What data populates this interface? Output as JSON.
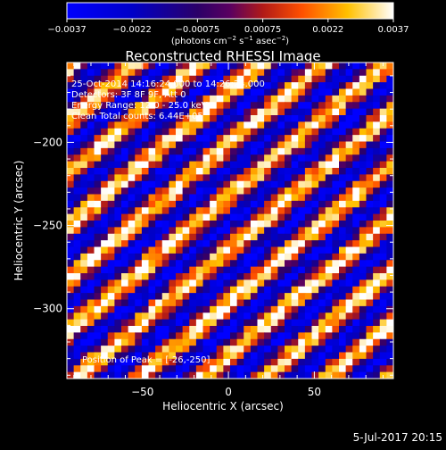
{
  "chart_data": {
    "type": "heatmap",
    "title": "Reconstructed RHESSI Image",
    "xlabel": "Heliocentric X (arcsec)",
    "ylabel": "Heliocentric Y (arcsec)",
    "xlim": [
      -94,
      96
    ],
    "ylim": [
      -342,
      -152
    ],
    "x_ticks": [
      -50,
      0,
      50
    ],
    "y_ticks": [
      -200,
      -250,
      -300
    ],
    "x_tick_labels": [
      "−50",
      "0",
      "50"
    ],
    "y_tick_labels": [
      "−200",
      "−250",
      "−300"
    ],
    "colorbar": {
      "min": -0.0037,
      "max": 0.0037,
      "tick_labels": [
        "−0.0037",
        "−0.0022",
        "−0.00075",
        "0.00075",
        "0.0022",
        "0.0037"
      ],
      "unit_label_main": "(photons cm",
      "unit_label_exp1": "−2",
      "unit_label_mid": " s",
      "unit_label_exp2": "−1",
      "unit_label_end": " asec",
      "unit_label_exp3": "−2",
      "unit_label_close": ")"
    },
    "annotations": [
      "25-Oct-2014 14:16:24.000 to 14:26:24.000",
      "Detectors: 3F 8F 9F, Att 0",
      "Energy Range: 12.0 - 25.0 keV",
      "Clean     Total counts: 6.44E+05"
    ],
    "peak_text": "Position of Peak = [-26,-250]",
    "footer_date": "5-Jul-2017 20:15",
    "pattern": {
      "description": "diagonal alternating stripes of positive and negative flux",
      "grid_size": 48,
      "peak_position": [
        -26,
        -250
      ]
    }
  }
}
